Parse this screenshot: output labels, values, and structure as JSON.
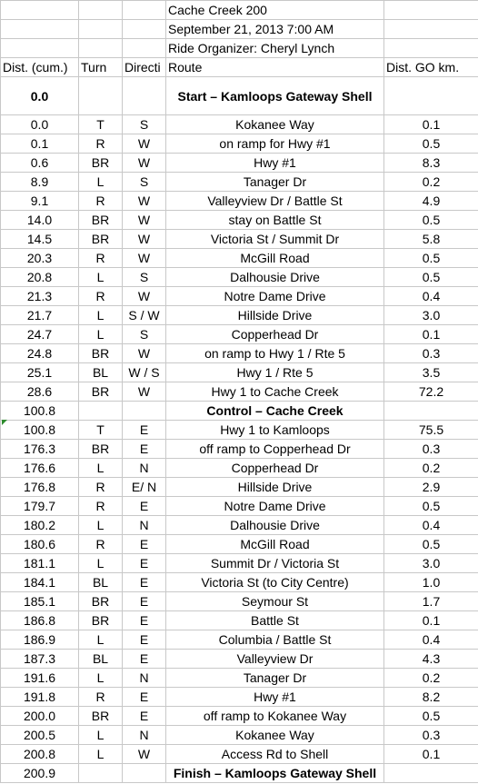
{
  "header": {
    "title": "Cache Creek 200",
    "date": "September 21, 2013 7:00 AM",
    "organizer": "Ride Organizer: Cheryl Lynch"
  },
  "columns": {
    "dist": "Dist. (cum.)",
    "turn": "Turn",
    "direction": "Directi",
    "route": "Route",
    "go": "Dist. GO km."
  },
  "start": {
    "dist": "0.0",
    "route": "Start – Kamloops Gateway Shell"
  },
  "section1": [
    {
      "dist": "0.0",
      "turn": "T",
      "dir": "S",
      "route": "Kokanee Way",
      "go": "0.1"
    },
    {
      "dist": "0.1",
      "turn": "R",
      "dir": "W",
      "route": "on ramp for Hwy #1",
      "go": "0.5"
    },
    {
      "dist": "0.6",
      "turn": "BR",
      "dir": "W",
      "route": "Hwy #1",
      "go": "8.3"
    },
    {
      "dist": "8.9",
      "turn": "L",
      "dir": "S",
      "route": "Tanager Dr",
      "go": "0.2"
    },
    {
      "dist": "9.1",
      "turn": "R",
      "dir": "W",
      "route": "Valleyview Dr / Battle St",
      "go": "4.9"
    },
    {
      "dist": "14.0",
      "turn": "BR",
      "dir": "W",
      "route": "stay on Battle St",
      "go": "0.5"
    },
    {
      "dist": "14.5",
      "turn": "BR",
      "dir": "W",
      "route": "Victoria St / Summit Dr",
      "go": "5.8"
    },
    {
      "dist": "20.3",
      "turn": "R",
      "dir": "W",
      "route": "McGill Road",
      "go": "0.5"
    },
    {
      "dist": "20.8",
      "turn": "L",
      "dir": "S",
      "route": "Dalhousie Drive",
      "go": "0.5"
    },
    {
      "dist": "21.3",
      "turn": "R",
      "dir": "W",
      "route": "Notre Dame Drive",
      "go": "0.4"
    },
    {
      "dist": "21.7",
      "turn": "L",
      "dir": "S / W",
      "route": "Hillside Drive",
      "go": "3.0"
    },
    {
      "dist": "24.7",
      "turn": "L",
      "dir": "S",
      "route": "Copperhead Dr",
      "go": "0.1"
    },
    {
      "dist": "24.8",
      "turn": "BR",
      "dir": "W",
      "route": "on ramp to Hwy 1 / Rte 5",
      "go": "0.3"
    },
    {
      "dist": "25.1",
      "turn": "BL",
      "dir": "W / S",
      "route": "Hwy 1 / Rte 5",
      "go": "3.5"
    },
    {
      "dist": "28.6",
      "turn": "BR",
      "dir": "W",
      "route": "Hwy 1 to Cache Creek",
      "go": "72.2"
    }
  ],
  "control": {
    "dist": "100.8",
    "route": "Control – Cache Creek"
  },
  "section2": [
    {
      "dist": "100.8",
      "turn": "T",
      "dir": "E",
      "route": "Hwy 1 to Kamloops",
      "go": "75.5"
    },
    {
      "dist": "176.3",
      "turn": "BR",
      "dir": "E",
      "route": "off ramp to Copperhead Dr",
      "go": "0.3"
    },
    {
      "dist": "176.6",
      "turn": "L",
      "dir": "N",
      "route": "Copperhead Dr",
      "go": "0.2"
    },
    {
      "dist": "176.8",
      "turn": "R",
      "dir": "E/ N",
      "route": "Hillside Drive",
      "go": "2.9"
    },
    {
      "dist": "179.7",
      "turn": "R",
      "dir": "E",
      "route": "Notre Dame Drive",
      "go": "0.5"
    },
    {
      "dist": "180.2",
      "turn": "L",
      "dir": "N",
      "route": "Dalhousie Drive",
      "go": "0.4"
    },
    {
      "dist": "180.6",
      "turn": "R",
      "dir": "E",
      "route": "McGill Road",
      "go": "0.5"
    },
    {
      "dist": "181.1",
      "turn": "L",
      "dir": "E",
      "route": "Summit Dr / Victoria St",
      "go": "3.0"
    },
    {
      "dist": "184.1",
      "turn": "BL",
      "dir": "E",
      "route": "Victoria St (to City Centre)",
      "go": "1.0"
    },
    {
      "dist": "185.1",
      "turn": "BR",
      "dir": "E",
      "route": "Seymour St",
      "go": "1.7"
    },
    {
      "dist": "186.8",
      "turn": "BR",
      "dir": "E",
      "route": "Battle St",
      "go": "0.1"
    },
    {
      "dist": "186.9",
      "turn": "L",
      "dir": "E",
      "route": "Columbia / Battle St",
      "go": "0.4"
    },
    {
      "dist": "187.3",
      "turn": "BL",
      "dir": "E",
      "route": "Valleyview Dr",
      "go": "4.3"
    },
    {
      "dist": "191.6",
      "turn": "L",
      "dir": "N",
      "route": "Tanager Dr",
      "go": "0.2"
    },
    {
      "dist": "191.8",
      "turn": "R",
      "dir": "E",
      "route": "Hwy #1",
      "go": "8.2"
    },
    {
      "dist": "200.0",
      "turn": "BR",
      "dir": "E",
      "route": "off ramp to Kokanee Way",
      "go": "0.5"
    },
    {
      "dist": "200.5",
      "turn": "L",
      "dir": "N",
      "route": "Kokanee Way",
      "go": "0.3"
    },
    {
      "dist": "200.8",
      "turn": "L",
      "dir": "W",
      "route": "Access Rd to Shell",
      "go": "0.1"
    }
  ],
  "finish": {
    "dist": "200.9",
    "route": "Finish – Kamloops Gateway Shell"
  },
  "colors": {
    "grid": "#c8c8c8",
    "comment_marker": "#2e8b2e"
  }
}
